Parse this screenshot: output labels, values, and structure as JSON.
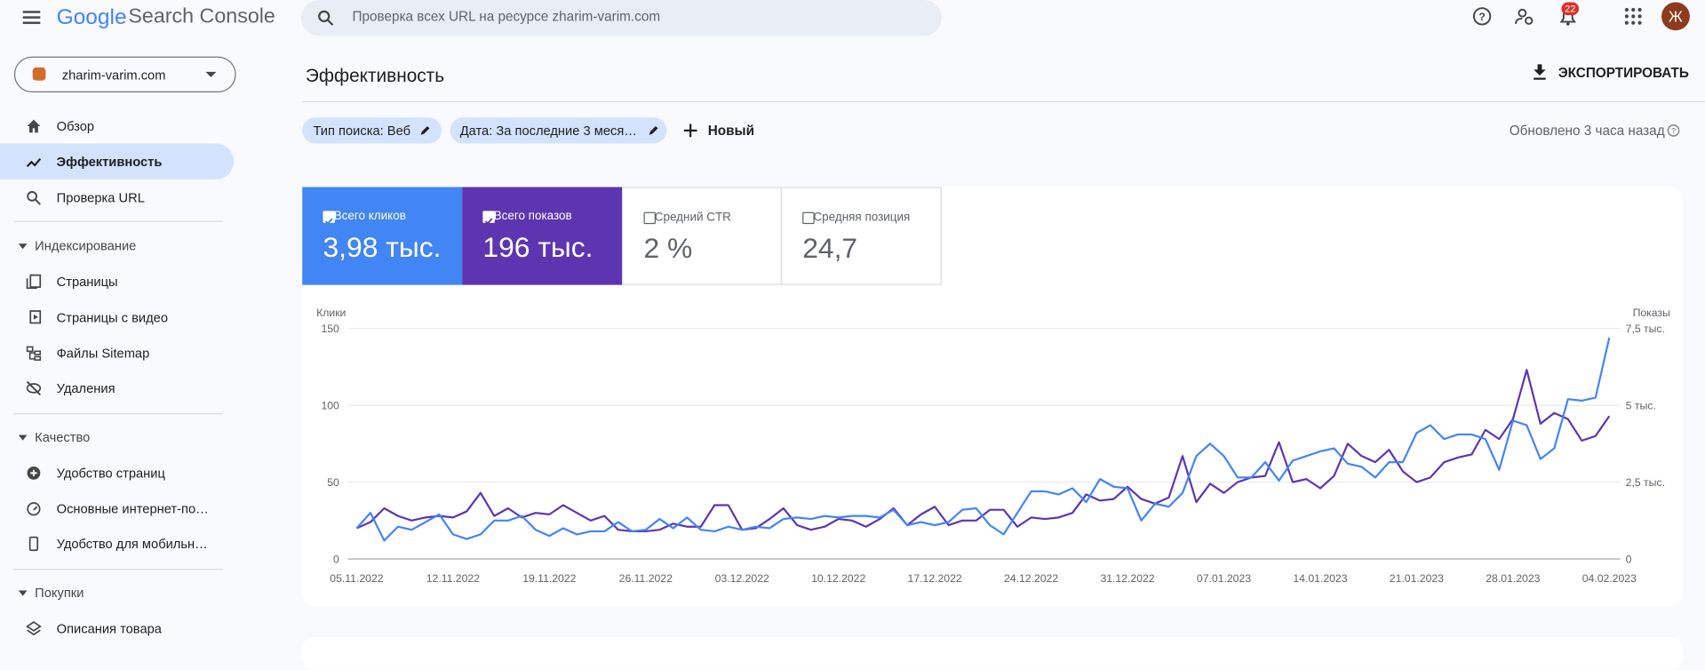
{
  "header": {
    "logo": "Google",
    "product": "Search Console",
    "search_placeholder": "Проверка всех URL на ресурсе zharim-varim.com",
    "notifications": "22",
    "avatar": "Ж"
  },
  "property": "zharim-varim.com",
  "nav": {
    "top": [
      "Обзор",
      "Эффективность",
      "Проверка URL"
    ],
    "sections": [
      {
        "title": "Индексирование",
        "items": [
          "Страницы",
          "Страницы с видео",
          "Файлы Sitemap",
          "Удаления"
        ]
      },
      {
        "title": "Качество",
        "items": [
          "Удобство страниц",
          "Основные интернет-по…",
          "Удобство для мобильн…"
        ]
      },
      {
        "title": "Покупки",
        "items": [
          "Описания товара"
        ]
      }
    ]
  },
  "page": {
    "title": "Эффективность",
    "export": "ЭКСПОРТИРОВАТЬ",
    "filters": [
      "Тип поиска: Веб",
      "Дата: За последние 3 меся…"
    ],
    "new_filter": "Новый",
    "updated": "Обновлено 3 часа назад"
  },
  "metrics": [
    {
      "label": "Всего кликов",
      "value": "3,98 тыс."
    },
    {
      "label": "Всего показов",
      "value": "196 тыс."
    },
    {
      "label": "Средний CTR",
      "value": "2 %"
    },
    {
      "label": "Средняя позиция",
      "value": "24,7"
    }
  ],
  "chart_data": {
    "type": "line",
    "categories": [
      "05.11.2022",
      null,
      null,
      null,
      null,
      null,
      null,
      "12.11.2022",
      null,
      null,
      null,
      null,
      null,
      null,
      "19.11.2022",
      null,
      null,
      null,
      null,
      null,
      null,
      "26.11.2022",
      null,
      null,
      null,
      null,
      null,
      null,
      "03.12.2022",
      null,
      null,
      null,
      null,
      null,
      null,
      "10.12.2022",
      null,
      null,
      null,
      null,
      null,
      null,
      "17.12.2022",
      null,
      null,
      null,
      null,
      null,
      null,
      "24.12.2022",
      null,
      null,
      null,
      null,
      null,
      null,
      "31.12.2022",
      null,
      null,
      null,
      null,
      null,
      null,
      "07.01.2023",
      null,
      null,
      null,
      null,
      null,
      null,
      "14.01.2023",
      null,
      null,
      null,
      null,
      null,
      null,
      "21.01.2023",
      null,
      null,
      null,
      null,
      null,
      null,
      "28.01.2023",
      null,
      null,
      null,
      null,
      null,
      null,
      "04.02.2023"
    ],
    "series": [
      {
        "name": "Клики",
        "color": "#4285f4",
        "values": [
          20,
          30,
          12,
          21,
          19,
          24,
          29,
          16,
          13,
          16,
          25,
          25,
          28,
          19,
          15,
          20,
          16,
          18,
          18,
          24,
          18,
          19,
          26,
          20,
          27,
          19,
          18,
          21,
          19,
          21,
          20,
          26,
          27,
          26,
          28,
          27,
          28,
          28,
          27,
          32,
          22,
          24,
          22,
          24,
          32,
          33,
          22,
          16,
          30,
          44,
          44,
          42,
          46,
          37,
          52,
          47,
          46,
          25,
          36,
          34,
          43,
          67,
          75,
          67,
          53,
          53,
          63,
          51,
          64,
          67,
          70,
          72,
          62,
          60,
          53,
          63,
          63,
          82,
          87,
          78,
          81,
          81,
          78,
          58,
          90,
          87,
          65,
          72,
          104,
          103,
          105,
          144
        ]
      },
      {
        "name": "Показы",
        "color": "#5e35b1",
        "axis": "y2",
        "values": [
          1000,
          1200,
          1650,
          1400,
          1250,
          1350,
          1400,
          1350,
          1550,
          2150,
          1400,
          1650,
          1350,
          1500,
          1450,
          1750,
          1500,
          1250,
          1400,
          950,
          900,
          900,
          950,
          1150,
          1050,
          1050,
          1750,
          1750,
          950,
          1000,
          1300,
          1650,
          1100,
          950,
          1050,
          1300,
          1250,
          1050,
          1300,
          1650,
          1100,
          1450,
          1700,
          1100,
          1250,
          1250,
          1600,
          1600,
          1050,
          1350,
          1300,
          1350,
          1500,
          2100,
          1900,
          1950,
          2350,
          1950,
          1800,
          2000,
          3350,
          1850,
          2450,
          2150,
          2500,
          2650,
          2700,
          3800,
          2500,
          2600,
          2300,
          2700,
          3750,
          3350,
          3150,
          3550,
          2850,
          2500,
          2650,
          3150,
          3300,
          3400,
          4200,
          3900,
          4550,
          6150,
          4400,
          4750,
          4550,
          3850,
          4000,
          4650
        ]
      }
    ],
    "ylim": [
      0,
      150
    ],
    "yticks": [
      0,
      50,
      100,
      150
    ],
    "y2lim": [
      0,
      7500
    ],
    "y2ticks": [
      0,
      {
        "value": 2500,
        "label": "2,5 тыс."
      },
      {
        "value": 5000,
        "label": "5 тыс."
      },
      {
        "value": 7500,
        "label": "7,5 тыс."
      }
    ],
    "grid": true
  }
}
